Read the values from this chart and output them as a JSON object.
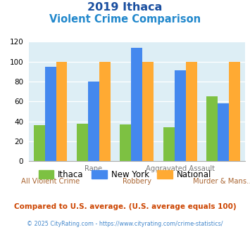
{
  "title_line1": "2019 Ithaca",
  "title_line2": "Violent Crime Comparison",
  "categories": [
    "All Violent Crime",
    "Rape",
    "Robbery",
    "Aggravated Assault",
    "Murder & Mans..."
  ],
  "ithaca": [
    36,
    38,
    37,
    34,
    65
  ],
  "new_york": [
    95,
    80,
    114,
    91,
    58
  ],
  "national": [
    100,
    100,
    100,
    100,
    100
  ],
  "color_ithaca": "#7dc142",
  "color_new_york": "#4488ee",
  "color_national": "#ffaa33",
  "ylim": [
    0,
    120
  ],
  "yticks": [
    0,
    20,
    40,
    60,
    80,
    100,
    120
  ],
  "bg_color": "#ddeef5",
  "title_color1": "#1a4fa0",
  "title_color2": "#2288cc",
  "footnote1": "Compared to U.S. average. (U.S. average equals 100)",
  "footnote2": "© 2025 CityRating.com - https://www.cityrating.com/crime-statistics/",
  "footnote1_color": "#cc4400",
  "footnote2_color": "#4488cc",
  "legend_labels": [
    "Ithaca",
    "New York",
    "National"
  ],
  "x_label_top_items": [
    "",
    "Rape",
    "",
    "Aggravated Assault",
    ""
  ],
  "x_label_bottom_items": [
    "All Violent Crime",
    "",
    "Robbery",
    "",
    "Murder & Mans..."
  ],
  "top_label_color": "#777777",
  "bottom_label_color": "#aa6633"
}
